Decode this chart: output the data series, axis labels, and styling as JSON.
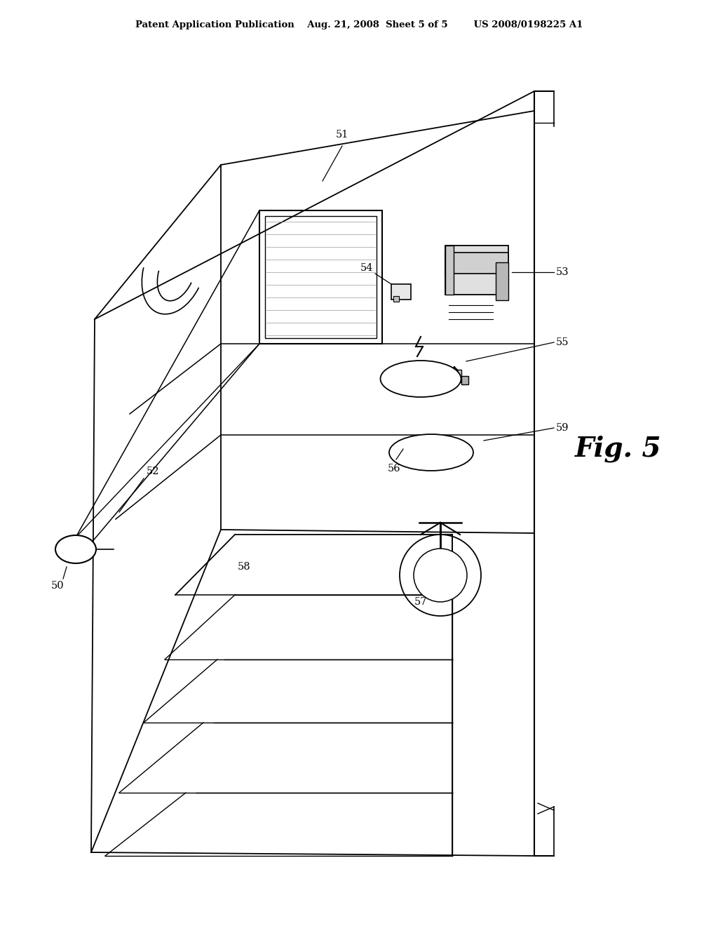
{
  "bg_color": "#ffffff",
  "line_color": "#000000",
  "header_text": "Patent Application Publication    Aug. 21, 2008  Sheet 5 of 5        US 2008/0198225 A1",
  "fig_label": "Fig. 5",
  "label_51": "51",
  "label_52": "52",
  "label_53": "53",
  "label_54": "54",
  "label_55": "55",
  "label_56": "56",
  "label_57": "57",
  "label_58": "58",
  "label_59": "59",
  "label_50": "50"
}
